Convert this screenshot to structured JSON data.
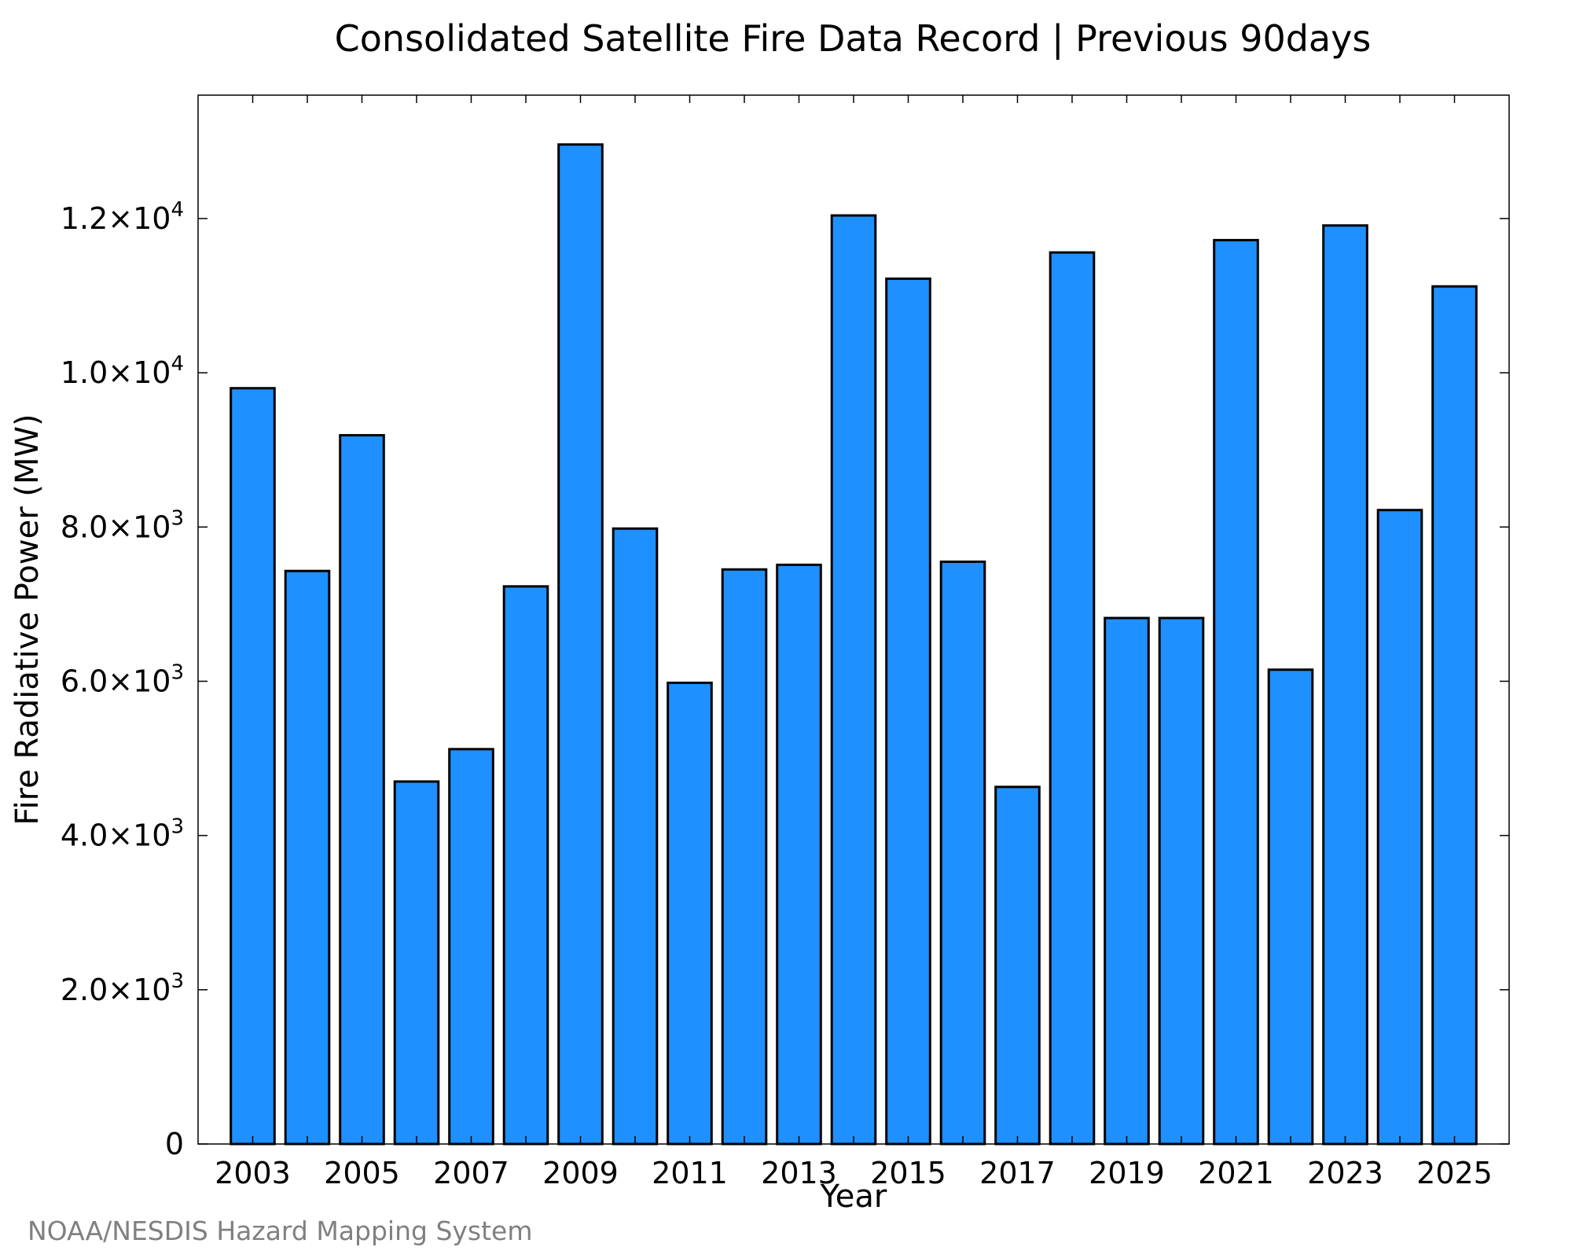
{
  "chart_data": {
    "type": "bar",
    "title": "Consolidated Satellite Fire Data Record | Previous 90days",
    "xlabel": "Year",
    "ylabel": "Fire Radiative Power (MW)",
    "credit": "NOAA/NESDIS Hazard Mapping System",
    "categories": [
      2003,
      2004,
      2005,
      2006,
      2007,
      2008,
      2009,
      2010,
      2011,
      2012,
      2013,
      2014,
      2015,
      2016,
      2017,
      2018,
      2019,
      2020,
      2021,
      2022,
      2023,
      2024,
      2025
    ],
    "values": [
      9800,
      7430,
      9190,
      4700,
      5120,
      7230,
      12960,
      7980,
      5980,
      7450,
      7510,
      12040,
      11220,
      7550,
      4630,
      11560,
      6820,
      6820,
      11720,
      6150,
      11910,
      8220,
      11120
    ],
    "xlim": [
      2002,
      2026
    ],
    "ylim": [
      0,
      13600
    ],
    "x_tick_labels": [
      "2003",
      "2005",
      "2007",
      "2009",
      "2011",
      "2013",
      "2015",
      "2017",
      "2019",
      "2021",
      "2023",
      "2025"
    ],
    "y_ticks": [
      {
        "value": 0,
        "mantissa": "0",
        "exponent": ""
      },
      {
        "value": 2000,
        "mantissa": "2.0×10",
        "exponent": "3"
      },
      {
        "value": 4000,
        "mantissa": "4.0×10",
        "exponent": "3"
      },
      {
        "value": 6000,
        "mantissa": "6.0×10",
        "exponent": "3"
      },
      {
        "value": 8000,
        "mantissa": "8.0×10",
        "exponent": "3"
      },
      {
        "value": 10000,
        "mantissa": "1.0×10",
        "exponent": "4"
      },
      {
        "value": 12000,
        "mantissa": "1.2×10",
        "exponent": "4"
      }
    ],
    "bar_color": "#1e90ff",
    "edge_color": "#000000",
    "grid": false,
    "legend": "none"
  }
}
